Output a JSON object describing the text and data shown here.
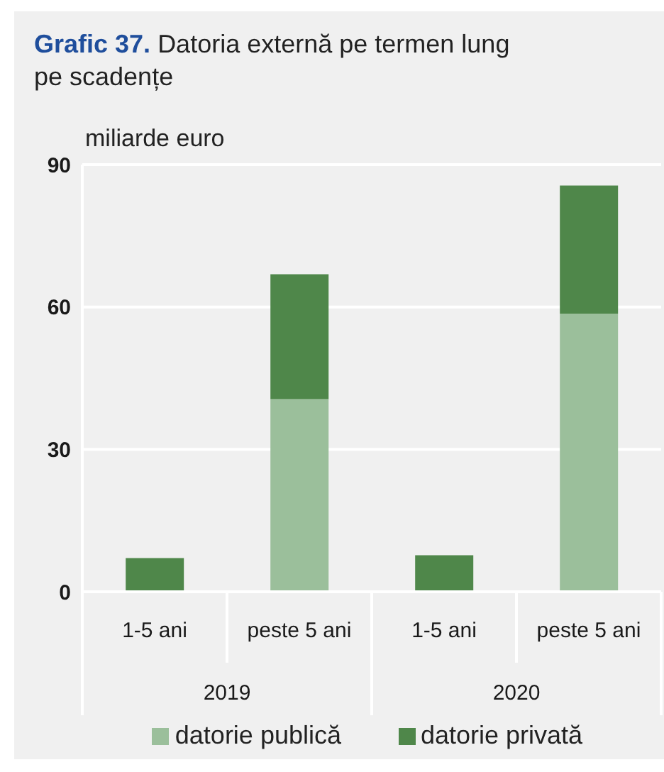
{
  "chart_data": {
    "type": "bar",
    "title": "Grafic 37.",
    "subtitle": "Datoria externă pe termen lung pe scadențe",
    "ylabel": "miliarde euro",
    "categories": [
      "1-5 ani",
      "peste 5 ani",
      "1-5 ani",
      "peste 5 ani"
    ],
    "annotations": [
      "2019",
      "2020"
    ],
    "series": [
      {
        "name": "datorie publică",
        "color": "#9bbf9b",
        "values": [
          0,
          40.6,
          0,
          58.6
        ]
      },
      {
        "name": "datorie privată",
        "color": "#4f874a",
        "values": [
          7.1,
          26.3,
          7.7,
          27.0
        ]
      }
    ],
    "stacked": true,
    "ylim": [
      0,
      90
    ],
    "yticks": [
      0,
      30,
      60,
      90
    ],
    "grid": "y",
    "legend": "bottom"
  }
}
